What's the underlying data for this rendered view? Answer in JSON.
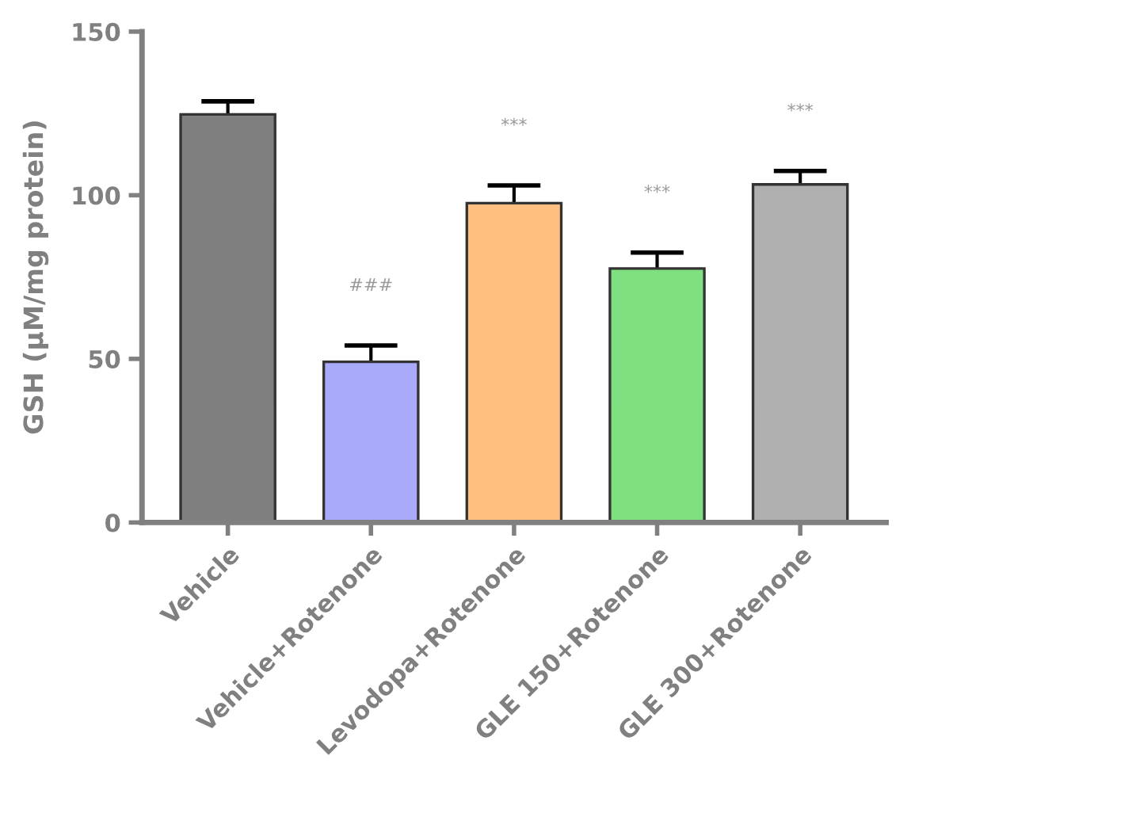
{
  "chart_data": {
    "type": "bar",
    "ylabel": "GSH (µM/mg protein)",
    "categories": [
      "Vehicle",
      "Vehicle+Rotenone",
      "Levodopa+Rotenone",
      "GLE 150+Rotenone",
      "GLE 300+Rotenone"
    ],
    "values": [
      124.7,
      49.1,
      97.6,
      77.6,
      103.3
    ],
    "errors": [
      4,
      5,
      5.4,
      4.9,
      4.1
    ],
    "colors": [
      "#7f7f7f",
      "#a9aaf9",
      "#ffbf80",
      "#80df80",
      "#b0b0b0"
    ],
    "ylim": [
      0,
      150
    ],
    "yticks": [
      0,
      50,
      100,
      150
    ],
    "grid": false,
    "legend": false,
    "annotations": [
      "###",
      "***",
      "***",
      "***"
    ]
  }
}
